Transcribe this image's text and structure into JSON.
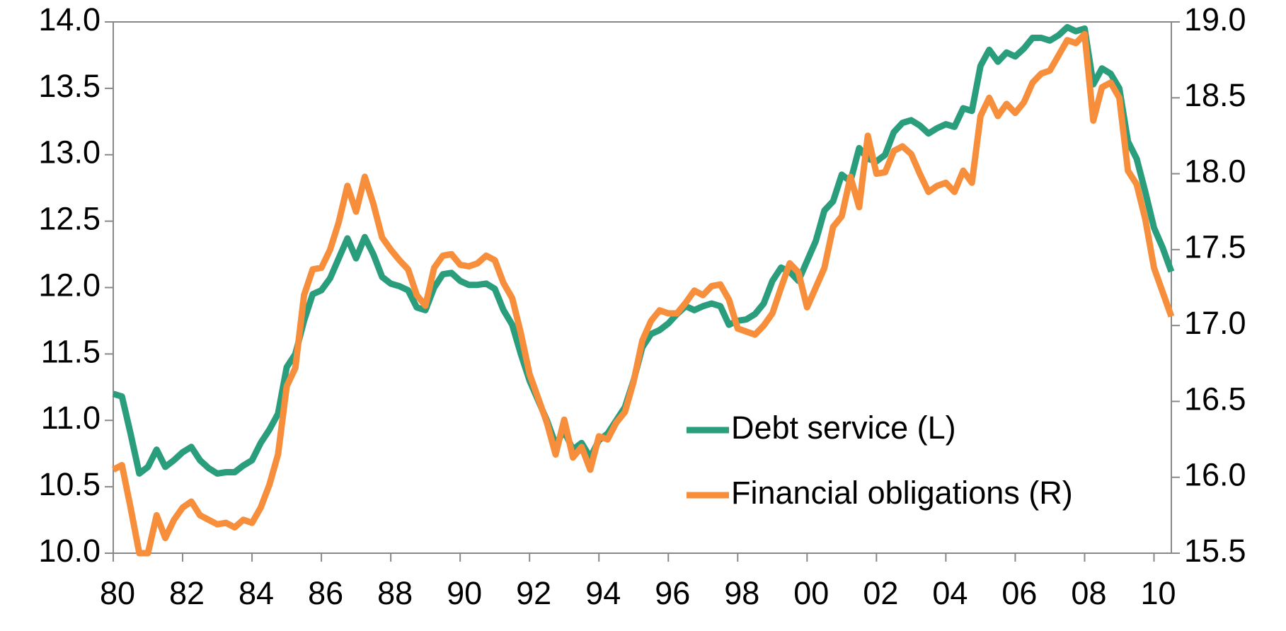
{
  "chart_data": {
    "type": "line",
    "x": [
      1980,
      1980.25,
      1980.5,
      1980.75,
      1981,
      1981.25,
      1981.5,
      1981.75,
      1982,
      1982.25,
      1982.5,
      1982.75,
      1983,
      1983.25,
      1983.5,
      1983.75,
      1984,
      1984.25,
      1984.5,
      1984.75,
      1985,
      1985.25,
      1985.5,
      1985.75,
      1986,
      1986.25,
      1986.5,
      1986.75,
      1987,
      1987.25,
      1987.5,
      1987.75,
      1988,
      1988.25,
      1988.5,
      1988.75,
      1989,
      1989.25,
      1989.5,
      1989.75,
      1990,
      1990.25,
      1990.5,
      1990.75,
      1991,
      1991.25,
      1991.5,
      1991.75,
      1992,
      1992.25,
      1992.5,
      1992.75,
      1993,
      1993.25,
      1993.5,
      1993.75,
      1994,
      1994.25,
      1994.5,
      1994.75,
      1995,
      1995.25,
      1995.5,
      1995.75,
      1996,
      1996.25,
      1996.5,
      1996.75,
      1997,
      1997.25,
      1997.5,
      1997.75,
      1998,
      1998.25,
      1998.5,
      1998.75,
      1999,
      1999.25,
      1999.5,
      1999.75,
      2000,
      2000.25,
      2000.5,
      2000.75,
      2001,
      2001.25,
      2001.5,
      2001.75,
      2002,
      2002.25,
      2002.5,
      2002.75,
      2003,
      2003.25,
      2003.5,
      2003.75,
      2004,
      2004.25,
      2004.5,
      2004.75,
      2005,
      2005.25,
      2005.5,
      2005.75,
      2006,
      2006.25,
      2006.5,
      2006.75,
      2007,
      2007.25,
      2007.5,
      2007.75,
      2008,
      2008.25,
      2008.5,
      2008.75,
      2009,
      2009.25,
      2009.5,
      2009.75,
      2010,
      2010.25,
      2010.5
    ],
    "series": [
      {
        "name": "Debt service (L)",
        "color": "#2a9d7c",
        "axis": "y",
        "values": [
          11.2,
          11.18,
          10.9,
          10.6,
          10.65,
          10.78,
          10.65,
          10.7,
          10.76,
          10.8,
          10.7,
          10.64,
          10.6,
          10.61,
          10.61,
          10.66,
          10.7,
          10.83,
          10.93,
          11.05,
          11.4,
          11.5,
          11.75,
          11.95,
          11.98,
          12.07,
          12.22,
          12.37,
          12.22,
          12.38,
          12.25,
          12.08,
          12.03,
          12.01,
          11.98,
          11.85,
          11.83,
          12.0,
          12.1,
          12.11,
          12.05,
          12.02,
          12.02,
          12.03,
          11.99,
          11.83,
          11.72,
          11.5,
          11.3,
          11.15,
          11.0,
          10.82,
          10.92,
          10.78,
          10.83,
          10.72,
          10.85,
          10.9,
          11.0,
          11.1,
          11.3,
          11.55,
          11.65,
          11.68,
          11.73,
          11.8,
          11.86,
          11.83,
          11.86,
          11.88,
          11.86,
          11.72,
          11.75,
          11.76,
          11.8,
          11.88,
          12.05,
          12.15,
          12.12,
          12.05,
          12.2,
          12.35,
          12.58,
          12.65,
          12.85,
          12.8,
          13.05,
          12.97,
          12.95,
          13.0,
          13.17,
          13.24,
          13.26,
          13.22,
          13.16,
          13.2,
          13.23,
          13.21,
          13.35,
          13.33,
          13.67,
          13.79,
          13.7,
          13.77,
          13.74,
          13.8,
          13.88,
          13.88,
          13.86,
          13.9,
          13.96,
          13.93,
          13.95,
          13.53,
          13.65,
          13.61,
          13.5,
          13.1,
          12.97,
          12.72,
          12.45,
          12.3,
          12.12
        ]
      },
      {
        "name": "Financial obligations (R)",
        "color": "#f68e3c",
        "axis": "y2",
        "values": [
          16.05,
          16.08,
          15.8,
          15.5,
          15.5,
          15.75,
          15.6,
          15.72,
          15.8,
          15.84,
          15.75,
          15.72,
          15.69,
          15.7,
          15.67,
          15.72,
          15.7,
          15.8,
          15.95,
          16.15,
          16.6,
          16.72,
          17.2,
          17.37,
          17.38,
          17.5,
          17.68,
          17.92,
          17.75,
          17.98,
          17.8,
          17.58,
          17.5,
          17.43,
          17.37,
          17.2,
          17.13,
          17.38,
          17.46,
          17.47,
          17.4,
          17.39,
          17.41,
          17.46,
          17.43,
          17.28,
          17.18,
          16.95,
          16.68,
          16.52,
          16.36,
          16.15,
          16.38,
          16.13,
          16.2,
          16.05,
          16.27,
          16.25,
          16.36,
          16.43,
          16.63,
          16.9,
          17.03,
          17.1,
          17.08,
          17.08,
          17.15,
          17.23,
          17.2,
          17.26,
          17.27,
          17.17,
          16.98,
          16.96,
          16.94,
          17.0,
          17.08,
          17.25,
          17.41,
          17.35,
          17.12,
          17.25,
          17.38,
          17.65,
          17.72,
          17.98,
          17.78,
          18.25,
          18.0,
          18.01,
          18.15,
          18.18,
          18.13,
          18.0,
          17.88,
          17.92,
          17.94,
          17.88,
          18.02,
          17.94,
          18.38,
          18.5,
          18.38,
          18.46,
          18.4,
          18.47,
          18.6,
          18.66,
          18.68,
          18.78,
          18.88,
          18.86,
          18.92,
          18.35,
          18.57,
          18.6,
          18.5,
          18.02,
          17.93,
          17.7,
          17.38,
          17.22,
          17.06
        ]
      }
    ],
    "xlim": [
      1980,
      2010.5
    ],
    "xticks": [
      {
        "value": 1980,
        "label": "80"
      },
      {
        "value": 1982,
        "label": "82"
      },
      {
        "value": 1984,
        "label": "84"
      },
      {
        "value": 1986,
        "label": "86"
      },
      {
        "value": 1988,
        "label": "88"
      },
      {
        "value": 1990,
        "label": "90"
      },
      {
        "value": 1992,
        "label": "92"
      },
      {
        "value": 1994,
        "label": "94"
      },
      {
        "value": 1996,
        "label": "96"
      },
      {
        "value": 1998,
        "label": "98"
      },
      {
        "value": 2000,
        "label": "00"
      },
      {
        "value": 2002,
        "label": "02"
      },
      {
        "value": 2004,
        "label": "04"
      },
      {
        "value": 2006,
        "label": "06"
      },
      {
        "value": 2008,
        "label": "08"
      },
      {
        "value": 2010,
        "label": "10"
      }
    ],
    "ylim": [
      10,
      14
    ],
    "yticks": [
      {
        "value": 10,
        "label": "10.0"
      },
      10.5,
      {
        "value": 11,
        "label": "11.0"
      },
      11.5,
      {
        "value": 12,
        "label": "12.0"
      },
      12.5,
      {
        "value": 13,
        "label": "13.0"
      },
      13.5,
      {
        "value": 14,
        "label": "14.0"
      }
    ],
    "y2lim": [
      15.5,
      19
    ],
    "y2ticks": [
      15.5,
      {
        "value": 16,
        "label": "16.0"
      },
      16.5,
      {
        "value": 17,
        "label": "17.0"
      },
      17.5,
      {
        "value": 18,
        "label": "18.0"
      },
      18.5,
      {
        "value": 19,
        "label": "19.0"
      }
    ],
    "legend": "lower right"
  }
}
